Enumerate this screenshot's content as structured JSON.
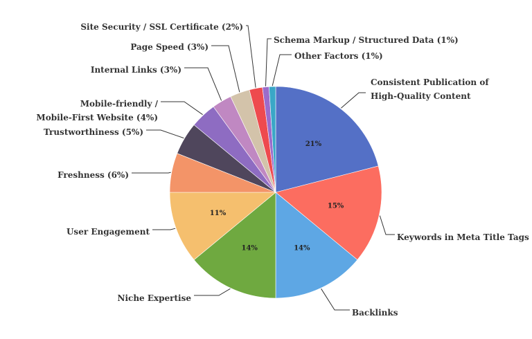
{
  "chart_data": {
    "type": "pie",
    "title": "",
    "start_angle_deg": 0,
    "direction": "clockwise",
    "slices": [
      {
        "name": "Consistent Publication of\nHigh-Quality Content",
        "label": "Consistent Publication of High-Quality Content",
        "value": 21,
        "color": "#5470c6",
        "data_label": "21%"
      },
      {
        "name": "Keywords in Meta Title Tags",
        "label": "Keywords in Meta Title Tags",
        "value": 15,
        "color": "#fc6d60",
        "data_label": "15%"
      },
      {
        "name": "Backlinks",
        "label": "Backlinks",
        "value": 14,
        "color": "#5ea7e4",
        "data_label": "14%"
      },
      {
        "name": "Niche Expertise",
        "label": "Niche Expertise",
        "value": 14,
        "color": "#6fa940",
        "data_label": "14%"
      },
      {
        "name": "User Engagement",
        "label": "User Engagement",
        "value": 11,
        "color": "#f5bf6e",
        "data_label": "11%"
      },
      {
        "name": "Freshness (6%)",
        "label": "Freshness",
        "value": 6,
        "color": "#f39468",
        "data_label": ""
      },
      {
        "name": "Trustworthiness (5%)",
        "label": "Trustworthiness",
        "value": 5,
        "color": "#4f465c",
        "data_label": ""
      },
      {
        "name": "Mobile-friendly /\nMobile-First Website (4%)",
        "label": "Mobile-friendly / Mobile-First Website",
        "value": 4,
        "color": "#8e6cc2",
        "data_label": ""
      },
      {
        "name": "Internal Links (3%)",
        "label": "Internal Links",
        "value": 3,
        "color": "#c088c2",
        "data_label": ""
      },
      {
        "name": "Page Speed (3%)",
        "label": "Page Speed",
        "value": 3,
        "color": "#d3c3aa",
        "data_label": ""
      },
      {
        "name": "Site Security / SSL Certificate (2%)",
        "label": "Site Security / SSL Certificate",
        "value": 2,
        "color": "#ee4a4e",
        "data_label": ""
      },
      {
        "name": "Schema Markup / Structured Data (1%)",
        "label": "Schema Markup / Structured Data",
        "value": 1,
        "color": "#9c6ccb",
        "data_label": ""
      },
      {
        "name": "Other Factors (1%)",
        "label": "Other Factors",
        "value": 1,
        "color": "#3aa7c7",
        "data_label": ""
      }
    ]
  }
}
